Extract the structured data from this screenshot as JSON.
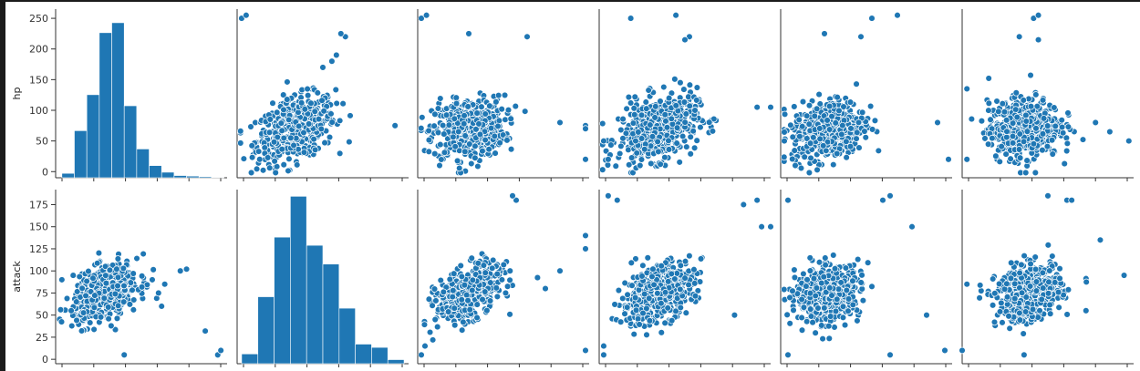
{
  "chart_data": {
    "type": "pairplot",
    "variables": [
      "hp",
      "attack"
    ],
    "columns": 6,
    "rows": [
      {
        "ylabel": "hp",
        "ylim": [
          -10,
          265
        ],
        "yticks": [
          0,
          50,
          100,
          150,
          200,
          250
        ],
        "cells": [
          {
            "kind": "hist",
            "xlim": [
              -10,
              265
            ],
            "bins": [
              0,
              20,
              40,
              60,
              80,
              100,
              120,
              140,
              160,
              180,
              200,
              220,
              240,
              260
            ],
            "counts": [
              8,
              85,
              150,
              262,
              280,
              130,
              52,
              22,
              10,
              4,
              3,
              2,
              1
            ],
            "countMax": 300
          },
          {
            "kind": "scatter",
            "xlim": [
              0,
              190
            ],
            "ylim": [
              -10,
              265
            ],
            "spread": 0.55,
            "lean": 0.38,
            "xMode": 65,
            "yMode": 70,
            "outliers": [
              [
                5,
                250
              ],
              [
                10,
                255
              ],
              [
                25,
                20
              ],
              [
                120,
                220
              ],
              [
                115,
                225
              ],
              [
                110,
                190
              ],
              [
                105,
                180
              ],
              [
                95,
                170
              ],
              [
                175,
                75
              ]
            ]
          },
          {
            "kind": "scatter",
            "xlim": [
              0,
              235
            ],
            "ylim": [
              -10,
              265
            ],
            "spread": 0.5,
            "lean": 0.12,
            "xMode": 70,
            "yMode": 70,
            "outliers": [
              [
                5,
                250
              ],
              [
                12,
                255
              ],
              [
                70,
                225
              ],
              [
                150,
                220
              ],
              [
                195,
                80
              ],
              [
                230,
                75
              ],
              [
                230,
                70
              ],
              [
                230,
                20
              ],
              [
                30,
                10
              ]
            ]
          },
          {
            "kind": "scatter",
            "xlim": [
              0,
              190
            ],
            "ylim": [
              -10,
              265
            ],
            "spread": 0.55,
            "lean": 0.3,
            "xMode": 65,
            "yMode": 70,
            "outliers": [
              [
                35,
                250
              ],
              [
                85,
                255
              ],
              [
                100,
                220
              ],
              [
                95,
                215
              ],
              [
                175,
                105
              ],
              [
                190,
                105
              ],
              [
                10,
                20
              ],
              [
                5,
                50
              ]
            ]
          },
          {
            "kind": "scatter",
            "xlim": [
              0,
              235
            ],
            "ylim": [
              -10,
              265
            ],
            "spread": 0.5,
            "lean": 0.22,
            "xMode": 65,
            "yMode": 70,
            "outliers": [
              [
                60,
                225
              ],
              [
                110,
                220
              ],
              [
                125,
                250
              ],
              [
                160,
                255
              ],
              [
                215,
                80
              ],
              [
                230,
                20
              ],
              [
                5,
                50
              ],
              [
                20,
                10
              ]
            ]
          },
          {
            "kind": "scatter",
            "xlim": [
              0,
              180
            ],
            "ylim": [
              -10,
              265
            ],
            "spread": 0.5,
            "lean": 0.08,
            "xMode": 65,
            "yMode": 70,
            "outliers": [
              [
                5,
                20
              ],
              [
                5,
                135
              ],
              [
                60,
                220
              ],
              [
                75,
                250
              ],
              [
                80,
                255
              ],
              [
                80,
                215
              ],
              [
                175,
                50
              ],
              [
                155,
                65
              ],
              [
                140,
                80
              ]
            ]
          }
        ]
      },
      {
        "ylabel": "attack",
        "ylim": [
          -5,
          192
        ],
        "yticks": [
          0,
          25,
          50,
          75,
          100,
          125,
          150,
          175
        ],
        "cells": [
          {
            "kind": "scatter",
            "xlim": [
              -10,
              265
            ],
            "ylim": [
              -5,
              192
            ],
            "spread": 0.45,
            "lean": 0.38,
            "xMode": 70,
            "yMode": 75,
            "outliers": [
              [
                0,
                90
              ],
              [
                15,
                55
              ],
              [
                100,
                5
              ],
              [
                190,
                100
              ],
              [
                200,
                102
              ],
              [
                230,
                32
              ],
              [
                250,
                5
              ],
              [
                255,
                10
              ],
              [
                155,
                75
              ],
              [
                145,
                90
              ],
              [
                160,
                60
              ],
              [
                165,
                85
              ]
            ]
          },
          {
            "kind": "hist",
            "xlim": [
              0,
              190
            ],
            "bins": [
              5,
              23,
              41,
              59,
              77,
              95,
              113,
              131,
              149,
              167,
              185
            ],
            "counts": [
              12,
              82,
              155,
              205,
              145,
              122,
              68,
              24,
              20,
              5
            ],
            "countMax": 210
          },
          {
            "kind": "scatter",
            "xlim": [
              0,
              235
            ],
            "ylim": [
              -5,
              192
            ],
            "spread": 0.45,
            "lean": 0.45,
            "xMode": 70,
            "yMode": 75,
            "outliers": [
              [
                5,
                5
              ],
              [
                10,
                15
              ],
              [
                230,
                140
              ],
              [
                230,
                125
              ],
              [
                230,
                10
              ],
              [
                195,
                100
              ],
              [
                175,
                80
              ],
              [
                135,
                180
              ],
              [
                130,
                185
              ]
            ]
          },
          {
            "kind": "scatter",
            "xlim": [
              0,
              190
            ],
            "ylim": [
              -5,
              192
            ],
            "spread": 0.5,
            "lean": 0.42,
            "xMode": 65,
            "yMode": 75,
            "outliers": [
              [
                10,
                185
              ],
              [
                20,
                180
              ],
              [
                160,
                175
              ],
              [
                175,
                180
              ],
              [
                190,
                150
              ],
              [
                180,
                150
              ],
              [
                5,
                5
              ],
              [
                5,
                15
              ],
              [
                150,
                50
              ]
            ]
          },
          {
            "kind": "scatter",
            "xlim": [
              0,
              235
            ],
            "ylim": [
              -5,
              192
            ],
            "spread": 0.45,
            "lean": 0.2,
            "xMode": 65,
            "yMode": 75,
            "outliers": [
              [
                10,
                180
              ],
              [
                140,
                180
              ],
              [
                150,
                185
              ],
              [
                225,
                10
              ],
              [
                200,
                50
              ],
              [
                10,
                5
              ],
              [
                150,
                5
              ],
              [
                180,
                150
              ]
            ]
          },
          {
            "kind": "scatter",
            "xlim": [
              0,
              180
            ],
            "ylim": [
              -5,
              192
            ],
            "spread": 0.45,
            "lean": 0.2,
            "xMode": 70,
            "yMode": 75,
            "outliers": [
              [
                0,
                10
              ],
              [
                5,
                85
              ],
              [
                170,
                95
              ],
              [
                145,
                135
              ],
              [
                130,
                55
              ],
              [
                90,
                185
              ],
              [
                110,
                180
              ],
              [
                115,
                180
              ],
              [
                65,
                5
              ]
            ]
          }
        ]
      }
    ]
  }
}
